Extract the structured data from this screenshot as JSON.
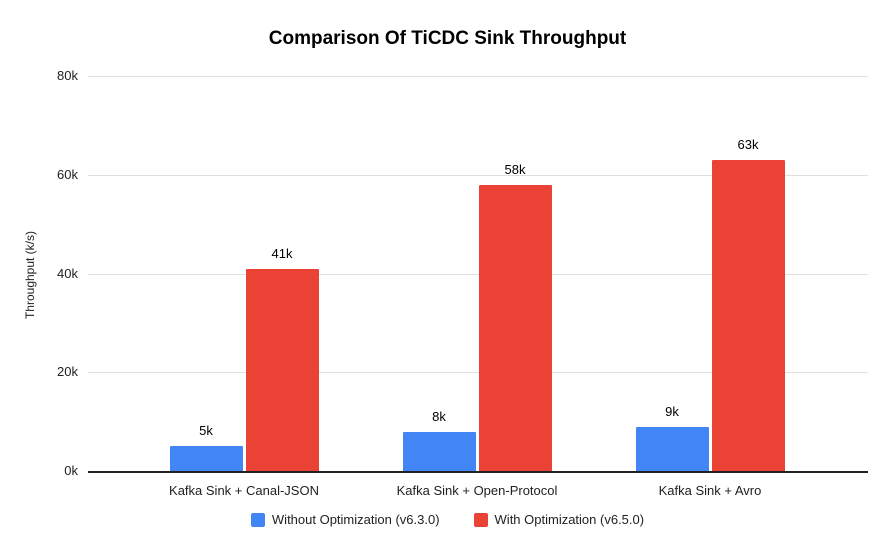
{
  "title": "Comparison Of TiCDC Sink Throughput",
  "chart_data": {
    "type": "bar",
    "title": "Comparison Of TiCDC Sink Throughput",
    "xlabel": "",
    "ylabel": "Throughput (k/s)",
    "ylim": [
      0,
      80
    ],
    "yticks": [
      {
        "value": 0,
        "label": "0k"
      },
      {
        "value": 20,
        "label": "20k"
      },
      {
        "value": 40,
        "label": "40k"
      },
      {
        "value": 60,
        "label": "60k"
      },
      {
        "value": 80,
        "label": "80k"
      }
    ],
    "grid": true,
    "legend_position": "bottom",
    "categories": [
      "Kafka Sink + Canal-JSON",
      "Kafka Sink + Open-Protocol",
      "Kafka Sink + Avro"
    ],
    "series": [
      {
        "name": "Without Optimization (v6.3.0)",
        "color": "#4285F4",
        "values": [
          5,
          8,
          9
        ],
        "value_labels": [
          "5k",
          "8k",
          "9k"
        ]
      },
      {
        "name": "With Optimization (v6.5.0)",
        "color": "#EA4335",
        "values": [
          41,
          58,
          63
        ],
        "value_labels": [
          "41k",
          "58k",
          "63k"
        ]
      }
    ]
  },
  "colors": {
    "background": "#ffffff",
    "gridline": "#e0e0e0",
    "axis_line": "#212121",
    "text": "#212121",
    "title_text": "#000000"
  }
}
